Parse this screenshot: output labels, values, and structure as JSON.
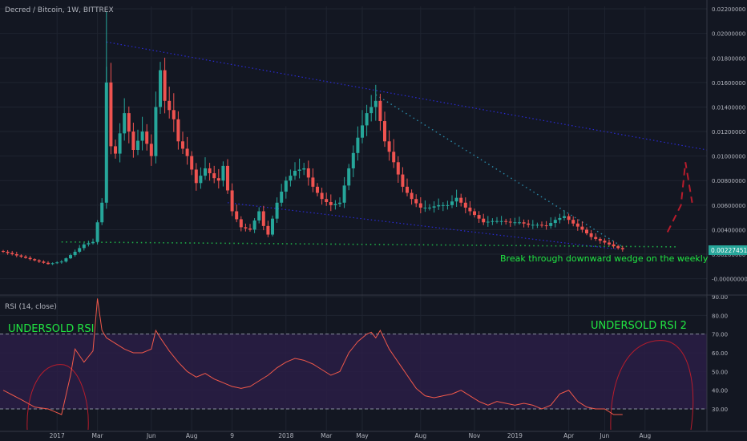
{
  "header": {
    "symbol_line": "Decred / Bitcoin, 1W, BITTREX"
  },
  "rsi_header": "RSI (14, close)",
  "annotations": {
    "left": "UNDERSOLD RSI",
    "right": "UNDERSOLD RSI 2",
    "wedge": "Break through downward wedge on the weekly"
  },
  "price_badge": "0.00227451б",
  "colors": {
    "background": "#131722",
    "up": "#26a69a",
    "down": "#ef5350",
    "grid": "#1f2430",
    "rsi_line": "#f0584a",
    "rsi_band": "#2a1d45",
    "annotation_green": "#21e642",
    "trend_blue": "#2a2ad4",
    "trend_teal": "#2a8aa8",
    "support_green": "#1fb048",
    "projection_red": "#b71c2c",
    "badge": "#26a69a"
  },
  "chart_data": [
    {
      "type": "candlestick",
      "title": "Decred / Bitcoin, 1W, BITTREX",
      "ylim": [
        -0.0012,
        0.0222
      ],
      "y_ticks": [
        "0.02200000",
        "0.02000000",
        "0.01800000",
        "0.01600000",
        "0.01400000",
        "0.01200000",
        "0.01000000",
        "0.00800000",
        "0.00600000",
        "0.00400000",
        "0.00200000",
        "-0.00000000"
      ],
      "y_tick_values": [
        0.022,
        0.02,
        0.018,
        0.016,
        0.014,
        0.012,
        0.01,
        0.008,
        0.006,
        0.004,
        0.002,
        0.0
      ],
      "x_ticks": [
        "2017",
        "Mar",
        "Jun",
        "Aug",
        "9",
        "2018",
        "Mar",
        "May",
        "Aug",
        "Nov",
        "2019",
        "Apr",
        "Jun",
        "Aug"
      ],
      "x_tick_index": [
        12,
        21,
        33,
        42,
        51,
        63,
        72,
        80,
        93,
        105,
        114,
        126,
        134,
        143
      ],
      "last_price": 0.00227451,
      "anchors": [
        [
          0,
          0.0022
        ],
        [
          6,
          0.0016
        ],
        [
          10,
          0.0012
        ],
        [
          13,
          0.0014
        ],
        [
          16,
          0.0022
        ],
        [
          18,
          0.0028
        ],
        [
          20,
          0.003
        ],
        [
          22,
          0.0062
        ],
        [
          23,
          0.016
        ],
        [
          24,
          0.0108
        ],
        [
          25,
          0.0102
        ],
        [
          27,
          0.0135
        ],
        [
          29,
          0.0105
        ],
        [
          31,
          0.012
        ],
        [
          33,
          0.01
        ],
        [
          34,
          0.014
        ],
        [
          35,
          0.017
        ],
        [
          36,
          0.0145
        ],
        [
          38,
          0.013
        ],
        [
          39,
          0.0112
        ],
        [
          41,
          0.01
        ],
        [
          43,
          0.0078
        ],
        [
          45,
          0.009
        ],
        [
          47,
          0.0082
        ],
        [
          48,
          0.008
        ],
        [
          49,
          0.0092
        ],
        [
          50,
          0.0072
        ],
        [
          51,
          0.0055
        ],
        [
          53,
          0.0042
        ],
        [
          55,
          0.004
        ],
        [
          57,
          0.0055
        ],
        [
          58,
          0.0043
        ],
        [
          59,
          0.0036
        ],
        [
          61,
          0.0062
        ],
        [
          63,
          0.008
        ],
        [
          65,
          0.0088
        ],
        [
          67,
          0.009
        ],
        [
          69,
          0.0075
        ],
        [
          71,
          0.0065
        ],
        [
          73,
          0.006
        ],
        [
          75,
          0.0062
        ],
        [
          77,
          0.009
        ],
        [
          79,
          0.0115
        ],
        [
          81,
          0.0135
        ],
        [
          83,
          0.0145
        ],
        [
          85,
          0.0112
        ],
        [
          87,
          0.0095
        ],
        [
          89,
          0.0075
        ],
        [
          91,
          0.0065
        ],
        [
          93,
          0.0058
        ],
        [
          95,
          0.0058
        ],
        [
          97,
          0.006
        ],
        [
          99,
          0.006
        ],
        [
          101,
          0.0066
        ],
        [
          103,
          0.0058
        ],
        [
          105,
          0.0052
        ],
        [
          107,
          0.0046
        ],
        [
          109,
          0.0047
        ],
        [
          111,
          0.0047
        ],
        [
          113,
          0.0046
        ],
        [
          115,
          0.0046
        ],
        [
          117,
          0.0044
        ],
        [
          119,
          0.0044
        ],
        [
          121,
          0.0043
        ],
        [
          123,
          0.0048
        ],
        [
          125,
          0.0051
        ],
        [
          127,
          0.0045
        ],
        [
          129,
          0.004
        ],
        [
          131,
          0.0034
        ],
        [
          133,
          0.0031
        ],
        [
          135,
          0.0028
        ],
        [
          137,
          0.0025
        ],
        [
          138,
          0.0024
        ]
      ]
    },
    {
      "type": "line",
      "title": "RSI (14, close)",
      "ylim": [
        18,
        90
      ],
      "y_ticks": [
        "90.00",
        "80.00",
        "70.00",
        "60.00",
        "50.00",
        "40.00",
        "30.00"
      ],
      "y_tick_values": [
        90,
        80,
        70,
        60,
        50,
        40,
        30
      ],
      "bands": [
        30,
        70
      ],
      "anchors": [
        [
          0,
          40
        ],
        [
          4,
          35
        ],
        [
          7,
          31
        ],
        [
          10,
          30
        ],
        [
          13,
          27
        ],
        [
          15,
          48
        ],
        [
          16,
          62
        ],
        [
          18,
          55
        ],
        [
          20,
          61
        ],
        [
          21,
          89
        ],
        [
          22,
          72
        ],
        [
          23,
          68
        ],
        [
          25,
          65
        ],
        [
          27,
          62
        ],
        [
          29,
          60
        ],
        [
          31,
          60
        ],
        [
          33,
          62
        ],
        [
          34,
          72
        ],
        [
          35,
          68
        ],
        [
          37,
          61
        ],
        [
          39,
          55
        ],
        [
          41,
          50
        ],
        [
          43,
          47
        ],
        [
          45,
          49
        ],
        [
          47,
          46
        ],
        [
          49,
          44
        ],
        [
          51,
          42
        ],
        [
          53,
          41
        ],
        [
          55,
          42
        ],
        [
          57,
          45
        ],
        [
          59,
          48
        ],
        [
          61,
          52
        ],
        [
          63,
          55
        ],
        [
          65,
          57
        ],
        [
          67,
          56
        ],
        [
          69,
          54
        ],
        [
          71,
          51
        ],
        [
          73,
          48
        ],
        [
          75,
          50
        ],
        [
          77,
          60
        ],
        [
          79,
          66
        ],
        [
          81,
          70
        ],
        [
          82,
          71
        ],
        [
          83,
          68
        ],
        [
          84,
          72
        ],
        [
          86,
          62
        ],
        [
          88,
          55
        ],
        [
          90,
          48
        ],
        [
          92,
          41
        ],
        [
          94,
          37
        ],
        [
          96,
          36
        ],
        [
          98,
          37
        ],
        [
          100,
          38
        ],
        [
          102,
          40
        ],
        [
          104,
          37
        ],
        [
          106,
          34
        ],
        [
          108,
          32
        ],
        [
          110,
          34
        ],
        [
          112,
          33
        ],
        [
          114,
          32
        ],
        [
          116,
          33
        ],
        [
          118,
          32
        ],
        [
          120,
          30
        ],
        [
          122,
          32
        ],
        [
          124,
          38
        ],
        [
          126,
          40
        ],
        [
          128,
          34
        ],
        [
          130,
          31
        ],
        [
          132,
          30
        ],
        [
          134,
          30
        ],
        [
          136,
          27
        ],
        [
          138,
          27
        ]
      ]
    }
  ]
}
